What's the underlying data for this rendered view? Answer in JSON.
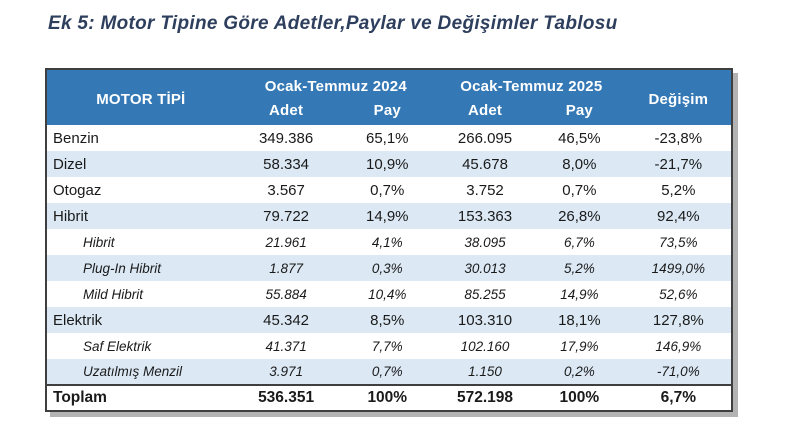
{
  "title": "Ek 5: Motor Tipine Göre Adetler,Paylar ve Değişimler Tablosu",
  "colors": {
    "header_bg": "#3478B5",
    "stripe_bg": "#DCE9F5",
    "title_text": "#2E3F5E",
    "table_border": "#3F3F3F",
    "table_shadow": "#B3B3B3",
    "body_text": "#1A1A1A"
  },
  "table": {
    "header": {
      "motor": "MOTOR TİPİ",
      "period_2024": "Ocak-Temmuz 2024",
      "period_2025": "Ocak-Temmuz 2025",
      "change": "Değişim",
      "adet": "Adet",
      "pay": "Pay"
    },
    "rows": [
      {
        "type": "main",
        "label": "Benzin",
        "values": [
          "349.386",
          "65,1%",
          "266.095",
          "46,5%",
          "-23,8%"
        ]
      },
      {
        "type": "main",
        "label": "Dizel",
        "values": [
          "58.334",
          "10,9%",
          "45.678",
          "8,0%",
          "-21,7%"
        ]
      },
      {
        "type": "main",
        "label": "Otogaz",
        "values": [
          "3.567",
          "0,7%",
          "3.752",
          "0,7%",
          "5,2%"
        ]
      },
      {
        "type": "main",
        "label": "Hibrit",
        "values": [
          "79.722",
          "14,9%",
          "153.363",
          "26,8%",
          "92,4%"
        ]
      },
      {
        "type": "sub",
        "label": "Hibrit",
        "values": [
          "21.961",
          "4,1%",
          "38.095",
          "6,7%",
          "73,5%"
        ]
      },
      {
        "type": "sub",
        "label": "Plug-In Hibrit",
        "values": [
          "1.877",
          "0,3%",
          "30.013",
          "5,2%",
          "1499,0%"
        ]
      },
      {
        "type": "sub",
        "label": "Mild Hibrit",
        "values": [
          "55.884",
          "10,4%",
          "85.255",
          "14,9%",
          "52,6%"
        ]
      },
      {
        "type": "main",
        "label": "Elektrik",
        "values": [
          "45.342",
          "8,5%",
          "103.310",
          "18,1%",
          "127,8%"
        ]
      },
      {
        "type": "sub",
        "label": "Saf Elektrik",
        "values": [
          "41.371",
          "7,7%",
          "102.160",
          "17,9%",
          "146,9%"
        ]
      },
      {
        "type": "sub",
        "label": "Uzatılmış Menzil",
        "values": [
          "3.971",
          "0,7%",
          "1.150",
          "0,2%",
          "-71,0%"
        ]
      },
      {
        "type": "total",
        "label": "Toplam",
        "values": [
          "536.351",
          "100%",
          "572.198",
          "100%",
          "6,7%"
        ]
      }
    ]
  }
}
